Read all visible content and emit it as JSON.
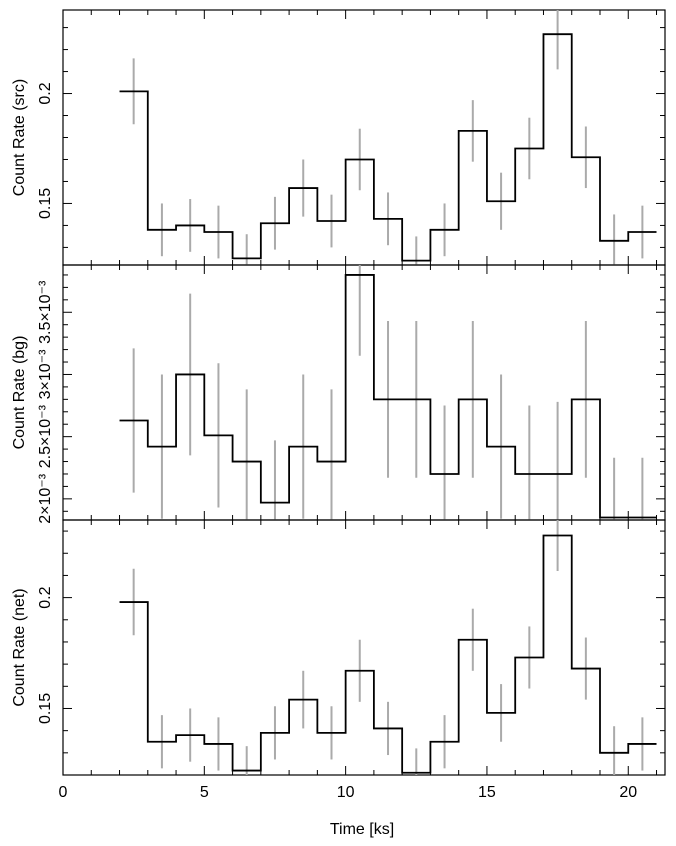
{
  "chart_data": [
    {
      "type": "line",
      "panel": "src",
      "ylabel": "Count Rate (src)",
      "ylim": [
        0.122,
        0.238
      ],
      "yticks": [
        {
          "value": 0.15,
          "label": "0.15"
        },
        {
          "value": 0.2,
          "label": "0.2"
        }
      ],
      "bin_edges": [
        2,
        3,
        4,
        5,
        6,
        7,
        8,
        9,
        10,
        11,
        12,
        13,
        14,
        15,
        16,
        17,
        18,
        19,
        20,
        21
      ],
      "values": [
        0.201,
        0.138,
        0.14,
        0.137,
        0.125,
        0.141,
        0.157,
        0.142,
        0.17,
        0.143,
        0.124,
        0.138,
        0.183,
        0.151,
        0.175,
        0.227,
        0.171,
        0.133,
        0.137
      ],
      "errors": [
        0.015,
        0.012,
        0.012,
        0.012,
        0.011,
        0.012,
        0.013,
        0.012,
        0.014,
        0.012,
        0.011,
        0.012,
        0.014,
        0.013,
        0.014,
        0.016,
        0.014,
        0.012,
        0.012
      ],
      "xlim": [
        0,
        21.3
      ],
      "grid": false
    },
    {
      "type": "line",
      "panel": "bg",
      "ylabel": "Count Rate (bg)",
      "ylim": [
        0.00183,
        0.00388
      ],
      "yticks": [
        {
          "value": 0.002,
          "label": "2×10⁻³"
        },
        {
          "value": 0.0025,
          "label": "2.5×10⁻³"
        },
        {
          "value": 0.003,
          "label": "3×10⁻³"
        },
        {
          "value": 0.0035,
          "label": "3.5×10⁻³"
        }
      ],
      "bin_edges": [
        2,
        3,
        4,
        5,
        6,
        7,
        8,
        9,
        10,
        11,
        12,
        13,
        14,
        15,
        16,
        17,
        18,
        19,
        20,
        21
      ],
      "values": [
        0.00263,
        0.00242,
        0.003,
        0.00251,
        0.0023,
        0.00197,
        0.00242,
        0.0023,
        0.0038,
        0.0028,
        0.0028,
        0.0022,
        0.0028,
        0.00242,
        0.0022,
        0.0022,
        0.0028,
        0.00185,
        0.00185
      ],
      "errors": [
        0.00058,
        0.00058,
        0.00065,
        0.00058,
        0.00058,
        0.0005,
        0.00058,
        0.00058,
        0.00065,
        0.00063,
        0.00063,
        0.00055,
        0.00063,
        0.00058,
        0.00055,
        0.00058,
        0.00063,
        0.00048,
        0.00048
      ],
      "xlim": [
        0,
        21.3
      ],
      "grid": false
    },
    {
      "type": "line",
      "panel": "net",
      "ylabel": "Count Rate (net)",
      "ylim": [
        0.12,
        0.235
      ],
      "yticks": [
        {
          "value": 0.15,
          "label": "0.15"
        },
        {
          "value": 0.2,
          "label": "0.2"
        }
      ],
      "bin_edges": [
        2,
        3,
        4,
        5,
        6,
        7,
        8,
        9,
        10,
        11,
        12,
        13,
        14,
        15,
        16,
        17,
        18,
        19,
        20,
        21
      ],
      "values": [
        0.198,
        0.135,
        0.138,
        0.134,
        0.122,
        0.139,
        0.154,
        0.139,
        0.167,
        0.141,
        0.121,
        0.135,
        0.181,
        0.148,
        0.173,
        0.228,
        0.168,
        0.13,
        0.134
      ],
      "errors": [
        0.015,
        0.012,
        0.012,
        0.012,
        0.011,
        0.012,
        0.013,
        0.012,
        0.014,
        0.012,
        0.011,
        0.012,
        0.014,
        0.013,
        0.014,
        0.016,
        0.014,
        0.012,
        0.012
      ],
      "xlim": [
        0,
        21.3
      ],
      "xlabel": "Time [ks]",
      "xticks": [
        {
          "value": 0,
          "label": "0"
        },
        {
          "value": 5,
          "label": "5"
        },
        {
          "value": 10,
          "label": "10"
        },
        {
          "value": 15,
          "label": "15"
        },
        {
          "value": 20,
          "label": "20"
        }
      ],
      "grid": false
    }
  ],
  "colors": {
    "step_line": "#000000",
    "error_bars": "#aaaaaa",
    "frame": "#000000"
  }
}
